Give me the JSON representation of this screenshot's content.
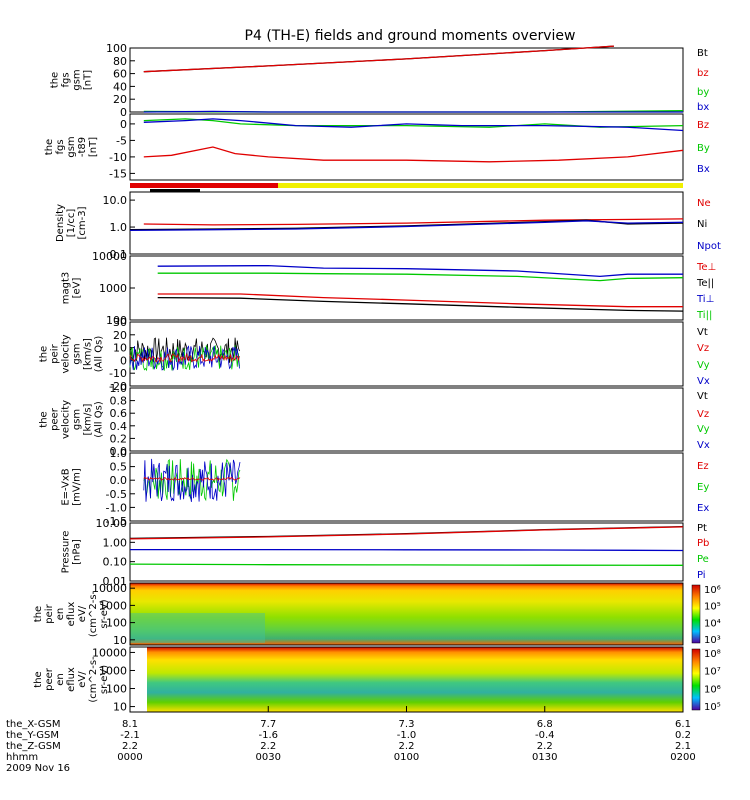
{
  "title": "P4 (TH-E) fields and ground moments overview",
  "date_label": "2009 Nov 16",
  "orbit_labels": [
    "the_X-GSM",
    "the_Y-GSM",
    "the_Z-GSM",
    "hhmm"
  ],
  "orbit_table": [
    {
      "x": "8.1",
      "y": "-2.1",
      "z": "2.2",
      "t": "0000"
    },
    {
      "x": "7.7",
      "y": "-1.6",
      "z": "2.2",
      "t": "0030"
    },
    {
      "x": "7.3",
      "y": "-1.0",
      "z": "2.2",
      "t": "0100"
    },
    {
      "x": "6.8",
      "y": "-0.4",
      "z": "2.2",
      "t": "0130"
    },
    {
      "x": "6.1",
      "y": "0.2",
      "z": "2.1",
      "t": "0200"
    }
  ],
  "colors": {
    "black": "#000000",
    "red": "#e00000",
    "green": "#00c800",
    "blue": "#0000c8",
    "yellow": "#f0f000"
  },
  "chart_data": [
    {
      "type": "line",
      "ylabel": [
        "the",
        "fgs",
        "gsm",
        "[nT]"
      ],
      "ylim": [
        0,
        100
      ],
      "ticks": [
        "0",
        "20",
        "40",
        "60",
        "80",
        "100"
      ],
      "legend": [
        {
          "name": "Bt",
          "color": "#000000"
        },
        {
          "name": "bz",
          "color": "#e00000"
        },
        {
          "name": "by",
          "color": "#00c800"
        },
        {
          "name": "bx",
          "color": "#0000c8"
        }
      ],
      "series": [
        {
          "name": "Bt",
          "color": "#000000",
          "x": [
            0.05,
            0.5,
            1.0,
            1.5,
            1.75
          ],
          "y": [
            63,
            72,
            83,
            96,
            103
          ]
        },
        {
          "name": "bz",
          "color": "#e00000",
          "x": [
            0.05,
            0.5,
            1.0,
            1.5,
            1.75
          ],
          "y": [
            63,
            72,
            83,
            96,
            103
          ]
        },
        {
          "name": "by",
          "color": "#00c800",
          "x": [
            0.05,
            0.5,
            1.0,
            1.5,
            2.0
          ],
          "y": [
            1,
            0,
            0,
            0,
            2
          ]
        },
        {
          "name": "bx",
          "color": "#0000c8",
          "x": [
            0.05,
            0.3,
            0.5,
            1.0,
            2.0
          ],
          "y": [
            0,
            1,
            0,
            0,
            0
          ]
        }
      ]
    },
    {
      "type": "line",
      "ylabel": [
        "the",
        "fgs",
        "gsm",
        "-t89",
        "[nT]"
      ],
      "ylim": [
        -17,
        3
      ],
      "ticks": [
        "-15",
        "-10",
        "-5",
        "0"
      ],
      "legend": [
        {
          "name": "Bz",
          "color": "#e00000"
        },
        {
          "name": "By",
          "color": "#00c800"
        },
        {
          "name": "Bx",
          "color": "#0000c8"
        }
      ],
      "series": [
        {
          "name": "Bz",
          "color": "#e00000",
          "x": [
            0.05,
            0.15,
            0.3,
            0.38,
            0.5,
            0.7,
            1.0,
            1.3,
            1.55,
            1.8,
            2.0
          ],
          "y": [
            -10,
            -9.5,
            -7,
            -9,
            -10,
            -11,
            -11,
            -11.5,
            -11,
            -10,
            -8
          ]
        },
        {
          "name": "By",
          "color": "#00c800",
          "x": [
            0.05,
            0.2,
            0.3,
            0.4,
            0.6,
            0.8,
            1.0,
            1.3,
            1.5,
            1.7,
            2.0
          ],
          "y": [
            1,
            1.5,
            1,
            0,
            -0.5,
            -0.5,
            -0.5,
            -1,
            0,
            -1,
            -0.5
          ]
        },
        {
          "name": "Bx",
          "color": "#0000c8",
          "x": [
            0.05,
            0.2,
            0.3,
            0.4,
            0.6,
            0.8,
            1.0,
            1.2,
            1.5,
            1.8,
            2.0
          ],
          "y": [
            0.5,
            1,
            1.5,
            1,
            -0.5,
            -1,
            0,
            -0.5,
            -0.5,
            -1,
            -2
          ]
        }
      ]
    },
    {
      "type": "line",
      "ylabel": [
        "Density",
        "[1/cc]",
        "[cm-3]"
      ],
      "log": true,
      "ylim": [
        0.1,
        20
      ],
      "ticks": [
        "0.1",
        "1.0",
        "10.0"
      ],
      "legend": [
        {
          "name": "Ne",
          "color": "#e00000"
        },
        {
          "name": "Ni",
          "color": "#000000"
        },
        {
          "name": "Npot",
          "color": "#0000c8"
        }
      ],
      "series": [
        {
          "name": "Ne",
          "color": "#e00000",
          "x": [
            0.05,
            0.3,
            0.6,
            1.0,
            1.5,
            2.0
          ],
          "y": [
            1.3,
            1.2,
            1.25,
            1.4,
            1.8,
            2.0
          ]
        },
        {
          "name": "Ni",
          "color": "#000000",
          "x": [
            0.0,
            0.3,
            0.6,
            1.0,
            1.5,
            1.65,
            1.8,
            2.0
          ],
          "y": [
            0.8,
            0.85,
            0.9,
            1.1,
            1.6,
            1.8,
            1.3,
            1.4
          ]
        },
        {
          "name": "Npot",
          "color": "#0000c8",
          "x": [
            0.0,
            0.3,
            0.6,
            1.0,
            1.5,
            1.65,
            1.8,
            2.0
          ],
          "y": [
            0.75,
            0.8,
            0.85,
            1.05,
            1.5,
            1.7,
            1.4,
            1.5
          ]
        }
      ]
    },
    {
      "type": "line",
      "ylabel": [
        "magt3",
        "[eV]"
      ],
      "log": true,
      "ylim": [
        100,
        10000
      ],
      "ticks": [
        "100",
        "1000",
        "10000"
      ],
      "legend": [
        {
          "name": "Te⊥",
          "color": "#e00000"
        },
        {
          "name": "Te||",
          "color": "#000000"
        },
        {
          "name": "Ti⊥",
          "color": "#0000c8"
        },
        {
          "name": "Ti||",
          "color": "#00c800"
        }
      ],
      "series": [
        {
          "name": "Te⊥",
          "color": "#e00000",
          "x": [
            0.1,
            0.4,
            0.7,
            1.0,
            1.4,
            1.8,
            2.0
          ],
          "y": [
            650,
            650,
            500,
            420,
            320,
            260,
            260
          ]
        },
        {
          "name": "Te||",
          "color": "#000000",
          "x": [
            0.1,
            0.4,
            0.7,
            1.0,
            1.4,
            1.8,
            2.0
          ],
          "y": [
            500,
            480,
            380,
            320,
            250,
            200,
            190
          ]
        },
        {
          "name": "Ti⊥",
          "color": "#0000c8",
          "x": [
            0.1,
            0.5,
            0.7,
            1.0,
            1.4,
            1.7,
            1.8,
            2.0
          ],
          "y": [
            4800,
            5000,
            4200,
            4000,
            3400,
            2300,
            2700,
            2700
          ]
        },
        {
          "name": "Ti||",
          "color": "#00c800",
          "x": [
            0.1,
            0.5,
            0.7,
            1.0,
            1.4,
            1.7,
            1.8,
            2.0
          ],
          "y": [
            2900,
            2900,
            2800,
            2700,
            2300,
            1700,
            2000,
            2100
          ]
        }
      ]
    },
    {
      "type": "line",
      "ylabel": [
        "the",
        "peir",
        "velocity",
        "gsm",
        "[km/s]",
        "(All Qs)"
      ],
      "ylim": [
        -20,
        30
      ],
      "ticks": [
        "-20",
        "-10",
        "0",
        "10",
        "20",
        "30"
      ],
      "legend": [
        {
          "name": "Vt",
          "color": "#000000"
        },
        {
          "name": "Vz",
          "color": "#e00000"
        },
        {
          "name": "Vy",
          "color": "#00c800"
        },
        {
          "name": "Vx",
          "color": "#0000c8"
        }
      ],
      "x_end": 0.4
    },
    {
      "type": "line",
      "ylabel": [
        "the",
        "peer",
        "velocity",
        "gsm",
        "[km/s]",
        "(All Qs)"
      ],
      "ylim": [
        0,
        1
      ],
      "ticks": [
        "0.0",
        "0.2",
        "0.4",
        "0.6",
        "0.8",
        "1.0"
      ],
      "legend": [
        {
          "name": "Vt",
          "color": "#000000"
        },
        {
          "name": "Vz",
          "color": "#e00000"
        },
        {
          "name": "Vy",
          "color": "#00c800"
        },
        {
          "name": "Vx",
          "color": "#0000c8"
        }
      ]
    },
    {
      "type": "line",
      "ylabel": [
        "E=-VxB",
        "[mV/m]"
      ],
      "ylim": [
        -1.5,
        1.0
      ],
      "ticks": [
        "-1.5",
        "-1.0",
        "-0.5",
        "0.0",
        "0.5",
        "1.0"
      ],
      "legend": [
        {
          "name": "Ez",
          "color": "#e00000"
        },
        {
          "name": "Ey",
          "color": "#00c800"
        },
        {
          "name": "Ex",
          "color": "#0000c8"
        }
      ],
      "x_start": 0.05,
      "x_end": 0.4
    },
    {
      "type": "line",
      "ylabel": [
        "Pressure",
        "[nPa]"
      ],
      "log": true,
      "ylim": [
        0.01,
        10
      ],
      "ticks": [
        "0.01",
        "0.10",
        "1.00",
        "10.00"
      ],
      "legend": [
        {
          "name": "Pt",
          "color": "#000000"
        },
        {
          "name": "Pb",
          "color": "#e00000"
        },
        {
          "name": "Pe",
          "color": "#00c800"
        },
        {
          "name": "Pi",
          "color": "#0000c8"
        }
      ],
      "series": [
        {
          "name": "Pt",
          "color": "#000000",
          "x": [
            0.0,
            0.5,
            1.0,
            1.5,
            2.0
          ],
          "y": [
            1.6,
            2.0,
            2.8,
            4.5,
            6.5
          ]
        },
        {
          "name": "Pb",
          "color": "#e00000",
          "x": [
            0.0,
            0.5,
            1.0,
            1.5,
            2.0
          ],
          "y": [
            1.5,
            1.9,
            2.7,
            4.4,
            6.3
          ]
        },
        {
          "name": "Pe",
          "color": "#00c800",
          "x": [
            0.0,
            0.5,
            1.0,
            1.5,
            2.0
          ],
          "y": [
            0.075,
            0.07,
            0.068,
            0.066,
            0.065
          ]
        },
        {
          "name": "Pi",
          "color": "#0000c8",
          "x": [
            0.0,
            0.5,
            1.0,
            1.5,
            2.0
          ],
          "y": [
            0.42,
            0.42,
            0.41,
            0.4,
            0.38
          ]
        }
      ]
    },
    {
      "type": "heatmap",
      "ylabel": [
        "the",
        "peir",
        "en",
        "eflux",
        "eV/",
        "(cm^2-s-",
        "sr-eV)"
      ],
      "log": true,
      "ylim": [
        5,
        20000
      ],
      "ticks": [
        "10",
        "100",
        "1000",
        "10000"
      ],
      "colorbar_ticks": [
        "10³",
        "10⁴",
        "10⁵",
        "10⁶"
      ]
    },
    {
      "type": "heatmap",
      "ylabel": [
        "the",
        "peer",
        "en",
        "eflux",
        "eV/",
        "(cm^2-s-",
        "sr-eV)"
      ],
      "log": true,
      "ylim": [
        5,
        20000
      ],
      "ticks": [
        "10",
        "100",
        "1000",
        "10000"
      ],
      "colorbar_ticks": [
        "10⁵",
        "10⁶",
        "10⁷",
        "10⁸"
      ]
    }
  ]
}
